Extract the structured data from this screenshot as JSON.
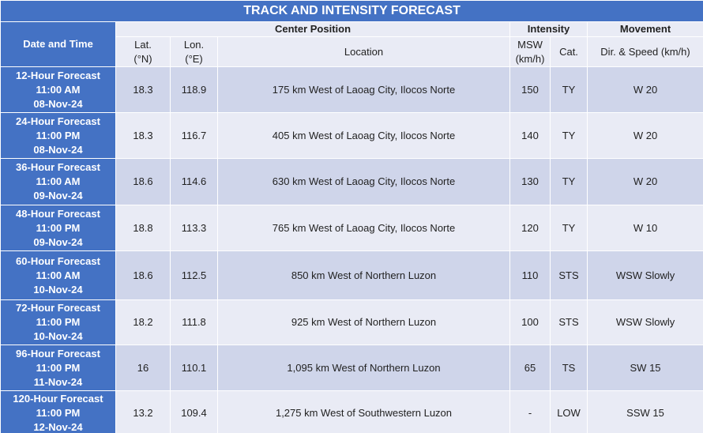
{
  "title": "TRACK AND INTENSITY FORECAST",
  "headers": {
    "date_time": "Date and Time",
    "center_position": "Center Position",
    "intensity": "Intensity",
    "movement": "Movement",
    "lat": [
      "Lat.",
      "(°N)"
    ],
    "lon": [
      "Lon.",
      "(°E)"
    ],
    "location": "Location",
    "msw": [
      "MSW",
      "(km/h)"
    ],
    "category": "Cat.",
    "dir_speed": "Dir. & Speed (km/h)"
  },
  "rows": [
    {
      "forecast": "12-Hour Forecast",
      "time": "11:00 AM",
      "date": "08-Nov-24",
      "lat": 18.3,
      "lon": 118.9,
      "location": "175 km West of Laoag City, Ilocos Norte",
      "msw": 150,
      "category": "TY",
      "movement": "W 20"
    },
    {
      "forecast": "24-Hour Forecast",
      "time": "11:00 PM",
      "date": "08-Nov-24",
      "lat": 18.3,
      "lon": 116.7,
      "location": "405 km West of Laoag City, Ilocos Norte",
      "msw": 140,
      "category": "TY",
      "movement": "W 20"
    },
    {
      "forecast": "36-Hour Forecast",
      "time": "11:00 AM",
      "date": "09-Nov-24",
      "lat": 18.6,
      "lon": 114.6,
      "location": "630 km West of Laoag City, Ilocos Norte",
      "msw": 130,
      "category": "TY",
      "movement": "W 20"
    },
    {
      "forecast": "48-Hour Forecast",
      "time": "11:00 PM",
      "date": "09-Nov-24",
      "lat": 18.8,
      "lon": 113.3,
      "location": "765 km West of Laoag City, Ilocos Norte",
      "msw": 120,
      "category": "TY",
      "movement": "W 10"
    },
    {
      "forecast": "60-Hour Forecast",
      "time": "11:00 AM",
      "date": "10-Nov-24",
      "lat": 18.6,
      "lon": 112.5,
      "location": "850 km West of Northern Luzon",
      "msw": 110,
      "category": "STS",
      "movement": "WSW Slowly"
    },
    {
      "forecast": "72-Hour Forecast",
      "time": "11:00 PM",
      "date": "10-Nov-24",
      "lat": 18.2,
      "lon": 111.8,
      "location": "925 km West of Northern Luzon",
      "msw": 100,
      "category": "STS",
      "movement": "WSW Slowly"
    },
    {
      "forecast": "96-Hour Forecast",
      "time": "11:00 PM",
      "date": "11-Nov-24",
      "lat": 16,
      "lon": 110.1,
      "location": "1,095 km West of Northern Luzon",
      "msw": 65,
      "category": "TS",
      "movement": "SW 15"
    },
    {
      "forecast": "120-Hour Forecast",
      "time": "11:00 PM",
      "date": "12-Nov-24",
      "lat": 13.2,
      "lon": 109.4,
      "location": "1,275 km West of Southwestern Luzon",
      "msw": "-",
      "category": "LOW",
      "movement": "SSW 15"
    }
  ]
}
